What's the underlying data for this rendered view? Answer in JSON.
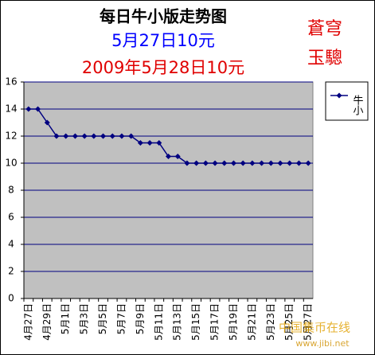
{
  "chart_data": {
    "type": "line",
    "title": "每日牛小版走势图",
    "subtitle": "5月27日10元",
    "subtitle2": "2009年5月28日10元",
    "annotations": [
      "蒼穹",
      "玉驄"
    ],
    "watermark": [
      "中国集币在线",
      "www.jibi.net"
    ],
    "categories": [
      "4月27日",
      null,
      "4月29日",
      null,
      "5月1日",
      null,
      "5月3日",
      null,
      "5月5日",
      null,
      "5月7日",
      null,
      "5月9日",
      null,
      "5月11日",
      null,
      "5月13日",
      null,
      "5月15日",
      null,
      "5月17日",
      null,
      "5月19日",
      null,
      "5月21日",
      null,
      "5月23日",
      null,
      "5月25日",
      null,
      "5月27日"
    ],
    "series": [
      {
        "name": "牛小",
        "color": "#000080",
        "values": [
          14,
          14,
          13,
          12,
          12,
          12,
          12,
          12,
          12,
          12,
          12,
          12,
          11.5,
          11.5,
          11.5,
          10.5,
          10.5,
          10,
          10,
          10,
          10,
          10,
          10,
          10,
          10,
          10,
          10,
          10,
          10,
          10,
          10
        ]
      }
    ],
    "ylim": [
      0,
      16
    ],
    "yticks": [
      0,
      2,
      4,
      6,
      8,
      10,
      12,
      14,
      16
    ],
    "grid": true,
    "plot_background": "#c0c0c0",
    "legend": "right"
  }
}
